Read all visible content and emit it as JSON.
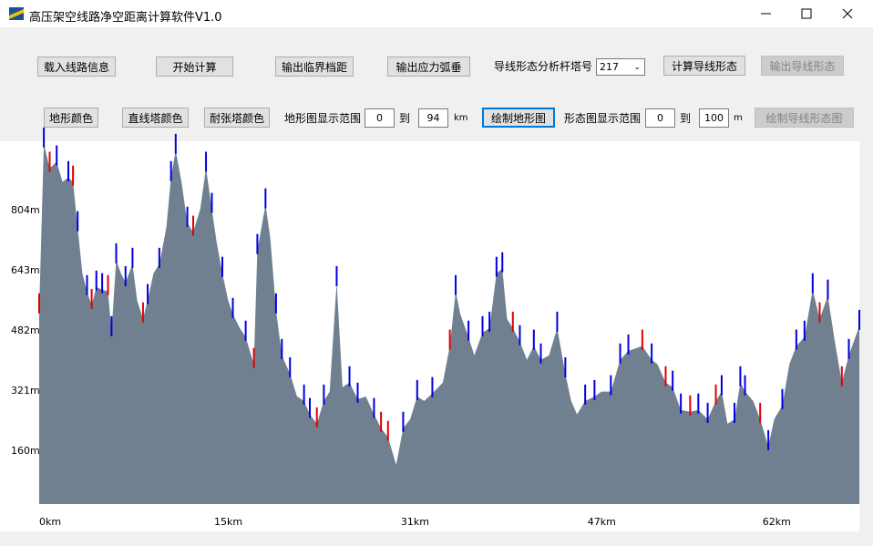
{
  "window": {
    "title": "高压架空线路净空距离计算软件V1.0"
  },
  "toolbar": {
    "row1": {
      "load": "载入线路信息",
      "start": "开始计算",
      "critical": "输出临界档距",
      "sag": "输出应力弧垂",
      "tower_label": "导线形态分析杆塔号",
      "tower_select": 217,
      "calc_shape": "计算导线形态",
      "export_shape": "输出导线形态"
    },
    "row2": {
      "terrain_color": "地形颜色",
      "straight_color": "直线塔颜色",
      "tension_color": "耐张塔颜色",
      "terrain_range_label": "地形图显示范围",
      "terrain_from": 0,
      "terrain_to_word": "到",
      "terrain_to": 94,
      "terrain_unit": "km",
      "draw_terrain": "绘制地形图",
      "shape_range_label": "形态图显示范围",
      "shape_from": 0,
      "shape_to_word": "到",
      "shape_to": 100,
      "shape_unit": "m",
      "draw_shape": "绘制导线形态图"
    }
  },
  "chart_data": {
    "type": "area",
    "color": "#708090",
    "x": [
      0,
      0.4,
      0.9,
      1.5,
      2,
      2.5,
      2.9,
      3.3,
      3.7,
      4.1,
      4.5,
      4.9,
      5.4,
      5.9,
      6.2,
      6.6,
      7.0,
      7.4,
      8.0,
      8.4,
      8.9,
      9.3,
      9.8,
      10.3,
      10.9,
      11.3,
      11.7,
      12.2,
      12.7,
      13.2,
      13.8,
      14.3,
      14.8,
      15.2,
      15.7,
      16.2,
      16.6,
      17.2,
      17.7,
      18.4,
      18.7,
      19.4,
      19.8,
      20.3,
      20.8,
      21.5,
      22.1,
      22.7,
      23.2,
      23.8,
      24.4,
      24.9,
      25.5,
      26.0,
      26.6,
      27.3,
      28.0,
      28.7,
      29.3,
      29.9,
      30.6,
      31.2,
      31.8,
      32.4,
      33.0,
      33.7,
      34.6,
      35.2,
      35.7,
      36.1,
      36.8,
      37.3,
      38.0,
      38.6,
      39.2,
      39.7,
      40.1,
      40.6,
      41.2,
      41.8,
      42.4,
      43.0,
      43.7,
      44.4,
      45.1,
      45.6,
      46.1,
      46.8,
      47.6,
      48.2,
      49.0,
      49.8,
      50.5,
      51.7,
      52.5,
      53.0,
      53.7,
      54.3,
      55.0,
      55.8,
      56.5,
      57.3,
      58.0,
      58.5,
      59.0,
      59.6,
      60.1,
      60.5,
      61.2,
      61.8,
      62.5,
      63.0,
      63.7,
      64.3,
      64.9,
      65.6,
      66.3,
      66.9,
      67.6,
      68.2,
      68.8,
      69.4,
      70.3
    ],
    "values": [
      538,
      982,
      917,
      934,
      880,
      892,
      880,
      758,
      636,
      587,
      550,
      599,
      592,
      587,
      477,
      672,
      636,
      611,
      660,
      563,
      514,
      563,
      636,
      660,
      758,
      892,
      965,
      880,
      770,
      746,
      807,
      917,
      807,
      721,
      636,
      563,
      526,
      489,
      465,
      392,
      697,
      819,
      733,
      538,
      416,
      367,
      306,
      294,
      258,
      233,
      294,
      319,
      611,
      331,
      343,
      299,
      306,
      258,
      221,
      197,
      123,
      221,
      245,
      306,
      294,
      314,
      343,
      441,
      587,
      526,
      465,
      416,
      477,
      489,
      636,
      648,
      514,
      489,
      453,
      404,
      441,
      404,
      416,
      489,
      367,
      294,
      258,
      294,
      306,
      319,
      319,
      404,
      428,
      441,
      404,
      392,
      343,
      331,
      270,
      265,
      270,
      245,
      294,
      319,
      233,
      245,
      343,
      319,
      294,
      245,
      172,
      245,
      282,
      392,
      441,
      465,
      592,
      514,
      575,
      453,
      343,
      416,
      494
    ],
    "straight_towers": {
      "color": "#0000e0",
      "x": [
        0.4,
        1.5,
        2.5,
        3.3,
        4.1,
        4.9,
        5.4,
        6.2,
        6.6,
        7.4,
        8.0,
        9.3,
        10.3,
        11.3,
        11.7,
        12.7,
        14.3,
        14.8,
        15.7,
        16.6,
        17.7,
        18.7,
        19.4,
        20.3,
        20.8,
        21.5,
        22.7,
        23.2,
        24.4,
        25.5,
        26.6,
        27.3,
        28.7,
        31.2,
        32.4,
        33.7,
        35.7,
        36.8,
        38.0,
        38.6,
        39.2,
        39.7,
        41.2,
        42.4,
        43.0,
        44.4,
        45.1,
        46.8,
        47.6,
        49.0,
        49.8,
        50.5,
        52.5,
        54.3,
        55.0,
        56.5,
        57.3,
        58.5,
        59.6,
        60.1,
        60.5,
        62.5,
        63.7,
        64.9,
        65.6,
        66.3,
        67.6,
        69.4,
        70.3
      ]
    },
    "tension_towers": {
      "color": "#e00000",
      "x": [
        0,
        0.9,
        2.9,
        4.5,
        5.9,
        8.9,
        13.2,
        18.4,
        23.8,
        29.3,
        29.9,
        35.2,
        40.6,
        51.7,
        53.7,
        55.8,
        58.0,
        61.8,
        66.9,
        68.8
      ]
    },
    "xlim": [
      0,
      70.3
    ],
    "ylim": [
      18,
      989
    ],
    "xticks": [
      {
        "value": 0,
        "label": "0km"
      },
      {
        "value": 15,
        "label": "15km"
      },
      {
        "value": 31,
        "label": "31km"
      },
      {
        "value": 47,
        "label": "47km"
      },
      {
        "value": 62,
        "label": "62km"
      }
    ],
    "yticks": [
      {
        "value": 160,
        "label": "160m"
      },
      {
        "value": 321,
        "label": "321m"
      },
      {
        "value": 482,
        "label": "482m"
      },
      {
        "value": 643,
        "label": "643m"
      },
      {
        "value": 804,
        "label": "804m"
      }
    ],
    "grid": false
  }
}
